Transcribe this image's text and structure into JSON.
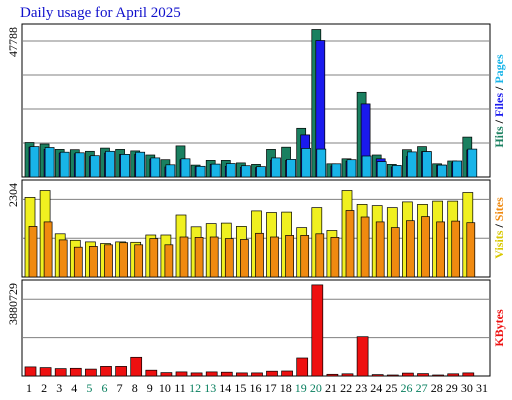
{
  "chart_data": {
    "type": "bar",
    "title": "Daily usage for April 2025",
    "days": [
      "1",
      "2",
      "3",
      "4",
      "5",
      "6",
      "7",
      "8",
      "9",
      "10",
      "11",
      "12",
      "13",
      "14",
      "15",
      "16",
      "17",
      "18",
      "19",
      "20",
      "21",
      "22",
      "23",
      "24",
      "25",
      "26",
      "27",
      "28",
      "29",
      "30",
      "31"
    ],
    "weekend_days": [
      "5",
      "6",
      "12",
      "13",
      "19",
      "20",
      "26",
      "27"
    ],
    "panels": [
      {
        "id": "hits",
        "max_label": "47788",
        "ymax": 47788,
        "series": [
          {
            "name": "Hits",
            "color": "#1a8060",
            "values": [
              11000,
              10500,
              8800,
              8700,
              8200,
              9200,
              8800,
              8300,
              7000,
              5500,
              9900,
              3800,
              5300,
              5300,
              4500,
              4000,
              8800,
              9500,
              15500,
              47000,
              4200,
              5800,
              27000,
              7000,
              4000,
              8700,
              9700,
              4200,
              5100,
              12700,
              0
            ]
          },
          {
            "name": "Files",
            "color": "#1a1aee",
            "values": [
              9500,
              8800,
              7600,
              7400,
              6500,
              7600,
              7200,
              7200,
              5700,
              3200,
              5500,
              3300,
              4000,
              3400,
              3100,
              3000,
              5400,
              5300,
              13400,
              43500,
              3500,
              5000,
              23300,
              5800,
              3200,
              6500,
              8100,
              3800,
              4600,
              8600,
              0
            ]
          },
          {
            "name": "Pages",
            "color": "#18b4e8",
            "values": [
              9700,
              9400,
              7900,
              7700,
              6800,
              8200,
              7200,
              7900,
              6100,
              3900,
              5800,
              3400,
              4100,
              4300,
              3600,
              3300,
              6100,
              5600,
              9100,
              8900,
              4200,
              5500,
              6700,
              4900,
              3700,
              8000,
              8100,
              3800,
              5100,
              8900,
              0
            ]
          }
        ],
        "legend": [
          {
            "label": "Hits",
            "color": "#1a8060"
          },
          {
            "label": "/",
            "color": "#000000"
          },
          {
            "label": "Files",
            "color": "#1a1aee"
          },
          {
            "label": "/",
            "color": "#000000"
          },
          {
            "label": "Pages",
            "color": "#18b4e8"
          }
        ]
      },
      {
        "id": "sites",
        "max_label": "2304",
        "ymax": 2304,
        "series": [
          {
            "name": "Visits",
            "color": "#f0f020",
            "values": [
              1950,
              2120,
              1060,
              900,
              860,
              820,
              860,
              850,
              1030,
              1030,
              1520,
              1230,
              1310,
              1320,
              1240,
              1620,
              1580,
              1590,
              1210,
              1700,
              1140,
              2120,
              1780,
              1750,
              1700,
              1840,
              1780,
              1860,
              1860,
              2070,
              0
            ]
          },
          {
            "name": "Sites",
            "color": "#f08a10",
            "values": [
              1240,
              1350,
              910,
              730,
              750,
              790,
              840,
              790,
              940,
              790,
              980,
              970,
              980,
              940,
              920,
              1070,
              980,
              1020,
              1020,
              1060,
              970,
              1630,
              1470,
              1350,
              1210,
              1380,
              1480,
              1350,
              1370,
              1330,
              0
            ]
          }
        ],
        "legend": [
          {
            "label": "Visits",
            "color": "#d8c800"
          },
          {
            "label": "/",
            "color": "#000000"
          },
          {
            "label": "Sites",
            "color": "#f08a10"
          }
        ]
      },
      {
        "id": "kbytes",
        "max_label": "3880729",
        "ymax": 3880729,
        "series": [
          {
            "name": "KBytes",
            "color": "#ee1010",
            "values": [
              380000,
              350000,
              310000,
              320000,
              290000,
              400000,
              400000,
              780000,
              240000,
              140000,
              170000,
              130000,
              170000,
              160000,
              130000,
              130000,
              200000,
              210000,
              750000,
              3800000,
              70000,
              90000,
              1640000,
              60000,
              40000,
              120000,
              100000,
              40000,
              90000,
              130000,
              0
            ]
          }
        ],
        "legend": [
          {
            "label": "KBytes",
            "color": "#ee1010"
          }
        ]
      }
    ]
  }
}
